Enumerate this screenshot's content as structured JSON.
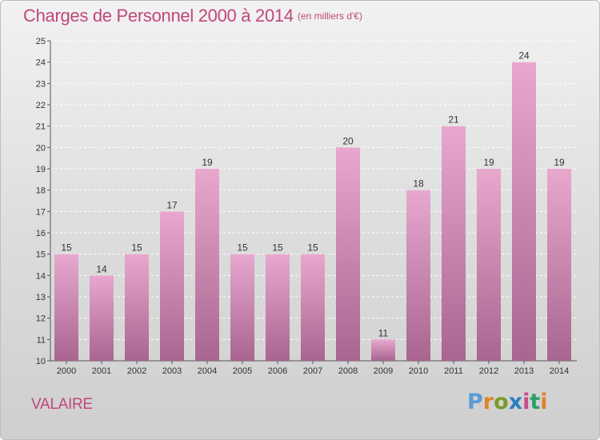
{
  "title": "Charges de Personnel 2000 à 2014",
  "subtitle": "(en milliers d'€)",
  "commune": "VALAIRE",
  "logo": "Proxiti",
  "colors": {
    "title": "#c0477a",
    "bar_top": "#e8a8ce",
    "bar_bottom": "#a86590",
    "logo_letters": [
      "#5b9bd5",
      "#e0832a",
      "#7a9a2a",
      "#2a7fc0",
      "#c84c8c",
      "#2aa06a",
      "#e0832a"
    ]
  },
  "chart_data": {
    "type": "bar",
    "categories": [
      "2000",
      "2001",
      "2002",
      "2003",
      "2004",
      "2005",
      "2006",
      "2007",
      "2008",
      "2009",
      "2010",
      "2011",
      "2012",
      "2013",
      "2014"
    ],
    "values": [
      15,
      14,
      15,
      17,
      19,
      15,
      15,
      15,
      20,
      11,
      18,
      21,
      19,
      24,
      19
    ],
    "ylim": [
      10,
      25
    ],
    "yticks": [
      10,
      11,
      12,
      13,
      14,
      15,
      16,
      17,
      18,
      19,
      20,
      21,
      22,
      23,
      24,
      25
    ],
    "grid": true,
    "legend": "none"
  }
}
